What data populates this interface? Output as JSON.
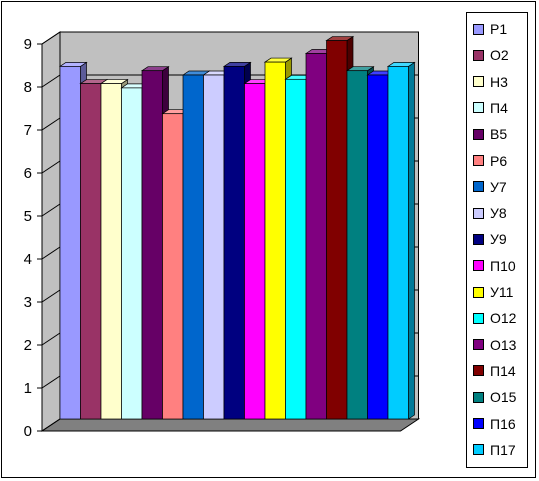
{
  "chart_data": {
    "type": "bar",
    "title": "",
    "xlabel": "",
    "ylabel": "",
    "ylim": [
      0,
      9
    ],
    "yticks": [
      "0",
      "1",
      "2",
      "3",
      "4",
      "5",
      "6",
      "7",
      "8",
      "9"
    ],
    "grid": true,
    "legend_position": "right",
    "series": [
      {
        "name": "Р1",
        "value": 8.2,
        "color": "#9999ff"
      },
      {
        "name": "О2",
        "value": 7.8,
        "color": "#993366"
      },
      {
        "name": "Н3",
        "value": 7.8,
        "color": "#ffffcc"
      },
      {
        "name": "П4",
        "value": 7.7,
        "color": "#ccffff"
      },
      {
        "name": "В5",
        "value": 8.1,
        "color": "#660066"
      },
      {
        "name": "Р6",
        "value": 7.1,
        "color": "#ff8080"
      },
      {
        "name": "У7",
        "value": 8.0,
        "color": "#0066cc"
      },
      {
        "name": "У8",
        "value": 8.0,
        "color": "#ccccff"
      },
      {
        "name": "У9",
        "value": 8.2,
        "color": "#000080"
      },
      {
        "name": "П10",
        "value": 7.8,
        "color": "#ff00ff"
      },
      {
        "name": "У11",
        "value": 8.3,
        "color": "#ffff00"
      },
      {
        "name": "О12",
        "value": 7.9,
        "color": "#00ffff"
      },
      {
        "name": "О13",
        "value": 8.5,
        "color": "#800080"
      },
      {
        "name": "П14",
        "value": 8.8,
        "color": "#800000"
      },
      {
        "name": "О15",
        "value": 8.1,
        "color": "#008080"
      },
      {
        "name": "П16",
        "value": 8.0,
        "color": "#0000ff"
      },
      {
        "name": "П17",
        "value": 8.2,
        "color": "#00ccff"
      }
    ]
  }
}
